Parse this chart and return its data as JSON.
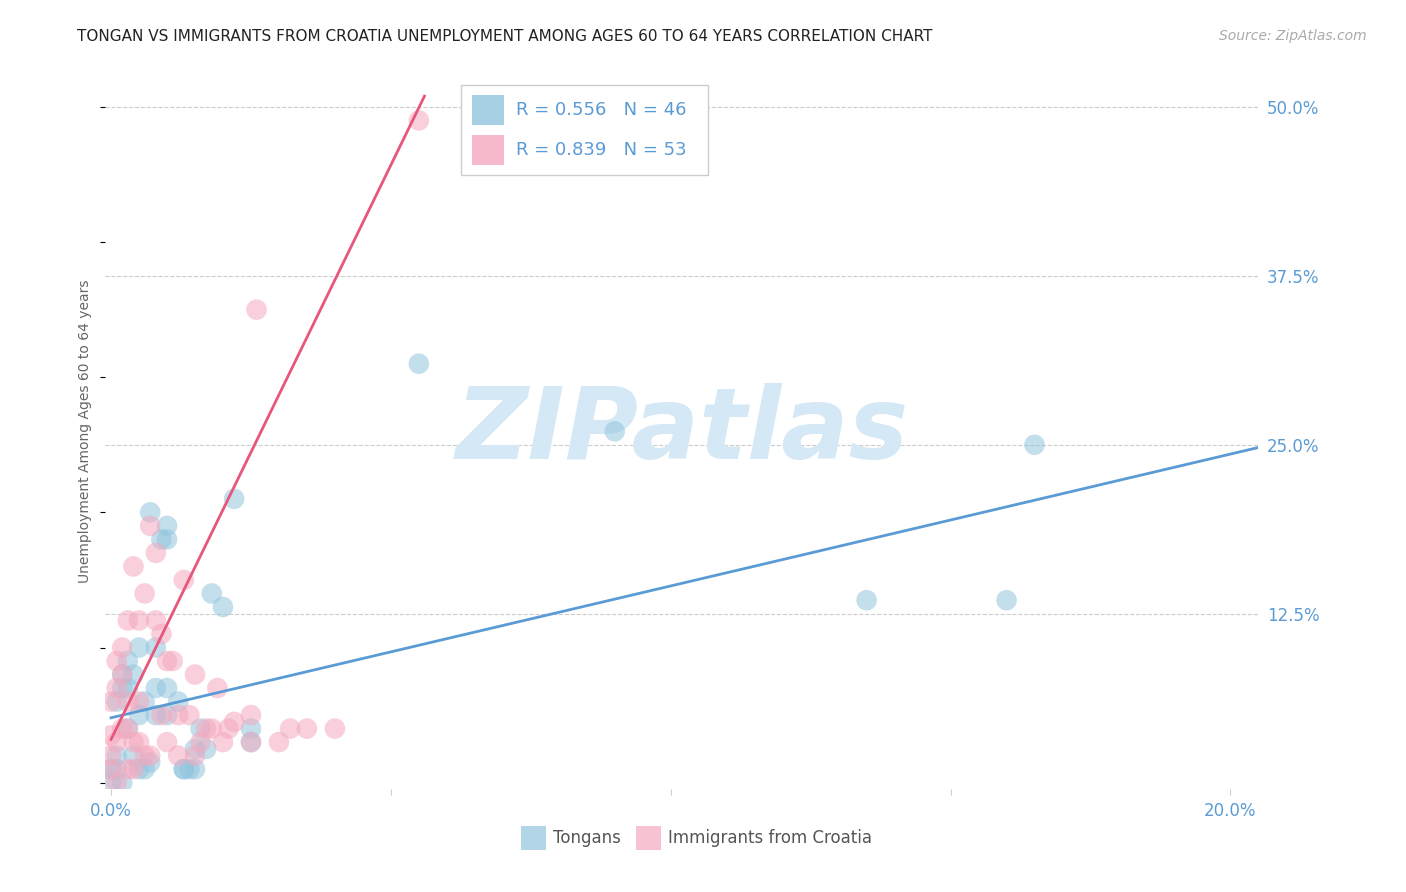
{
  "title": "TONGAN VS IMMIGRANTS FROM CROATIA UNEMPLOYMENT AMONG AGES 60 TO 64 YEARS CORRELATION CHART",
  "source": "Source: ZipAtlas.com",
  "ylabel": "Unemployment Among Ages 60 to 64 years",
  "xlim": [
    -0.001,
    0.205
  ],
  "ylim": [
    -0.005,
    0.525
  ],
  "xticks": [
    0.0,
    0.05,
    0.1,
    0.15,
    0.2
  ],
  "xticklabels": [
    "0.0%",
    "",
    "",
    "",
    "20.0%"
  ],
  "yticks": [
    0.0,
    0.125,
    0.25,
    0.375,
    0.5
  ],
  "yticklabels": [
    "",
    "12.5%",
    "25.0%",
    "37.5%",
    "50.0%"
  ],
  "title_fontsize": 11,
  "axis_label_fontsize": 10,
  "tick_fontsize": 12,
  "source_fontsize": 10,
  "legend_R1": "R = 0.556",
  "legend_N1": "N = 46",
  "legend_R2": "R = 0.839",
  "legend_N2": "N = 53",
  "legend_label1": "Tongans",
  "legend_label2": "Immigrants from Croatia",
  "color_tongan": "#92c5de",
  "color_croatia": "#f4a8be",
  "color_tongan_line": "#5b9bd5",
  "color_croatia_line": "#e8567a",
  "color_tick_label": "#5b9bd5",
  "color_axis_label": "#666666",
  "watermark_color": "#d5e8f5",
  "background_color": "#ffffff",
  "tongan_x": [
    0.0,
    0.0,
    0.001,
    0.001,
    0.001,
    0.002,
    0.002,
    0.002,
    0.003,
    0.003,
    0.003,
    0.004,
    0.004,
    0.005,
    0.005,
    0.005,
    0.006,
    0.006,
    0.007,
    0.007,
    0.008,
    0.008,
    0.008,
    0.009,
    0.01,
    0.01,
    0.01,
    0.01,
    0.012,
    0.013,
    0.013,
    0.014,
    0.015,
    0.015,
    0.016,
    0.017,
    0.018,
    0.02,
    0.022,
    0.025,
    0.025,
    0.055,
    0.09,
    0.135,
    0.16,
    0.165
  ],
  "tongan_y": [
    0.0,
    0.01,
    0.01,
    0.02,
    0.06,
    0.0,
    0.07,
    0.08,
    0.04,
    0.07,
    0.09,
    0.02,
    0.08,
    0.01,
    0.05,
    0.1,
    0.01,
    0.06,
    0.015,
    0.2,
    0.05,
    0.07,
    0.1,
    0.18,
    0.05,
    0.07,
    0.18,
    0.19,
    0.06,
    0.01,
    0.01,
    0.01,
    0.01,
    0.025,
    0.04,
    0.025,
    0.14,
    0.13,
    0.21,
    0.03,
    0.04,
    0.31,
    0.26,
    0.135,
    0.135,
    0.25
  ],
  "croatia_x": [
    0.0,
    0.0,
    0.0,
    0.0,
    0.001,
    0.001,
    0.001,
    0.001,
    0.002,
    0.002,
    0.002,
    0.003,
    0.003,
    0.003,
    0.003,
    0.004,
    0.004,
    0.004,
    0.005,
    0.005,
    0.005,
    0.006,
    0.006,
    0.007,
    0.007,
    0.008,
    0.008,
    0.009,
    0.009,
    0.01,
    0.01,
    0.011,
    0.012,
    0.012,
    0.013,
    0.014,
    0.015,
    0.015,
    0.016,
    0.017,
    0.018,
    0.019,
    0.02,
    0.021,
    0.022,
    0.025,
    0.025,
    0.026,
    0.03,
    0.032,
    0.035,
    0.04,
    0.055
  ],
  "croatia_y": [
    0.01,
    0.02,
    0.035,
    0.06,
    0.0,
    0.03,
    0.07,
    0.09,
    0.04,
    0.08,
    0.1,
    0.01,
    0.04,
    0.06,
    0.12,
    0.01,
    0.03,
    0.16,
    0.03,
    0.06,
    0.12,
    0.02,
    0.14,
    0.02,
    0.19,
    0.12,
    0.17,
    0.05,
    0.11,
    0.03,
    0.09,
    0.09,
    0.02,
    0.05,
    0.15,
    0.05,
    0.02,
    0.08,
    0.03,
    0.04,
    0.04,
    0.07,
    0.03,
    0.04,
    0.045,
    0.03,
    0.05,
    0.35,
    0.03,
    0.04,
    0.04,
    0.04,
    0.49
  ],
  "tongan_line_x": [
    0.0,
    0.205
  ],
  "tongan_line_y": [
    0.048,
    0.248
  ],
  "croatia_line_x": [
    0.0,
    0.056
  ],
  "croatia_line_y": [
    0.032,
    0.508
  ]
}
